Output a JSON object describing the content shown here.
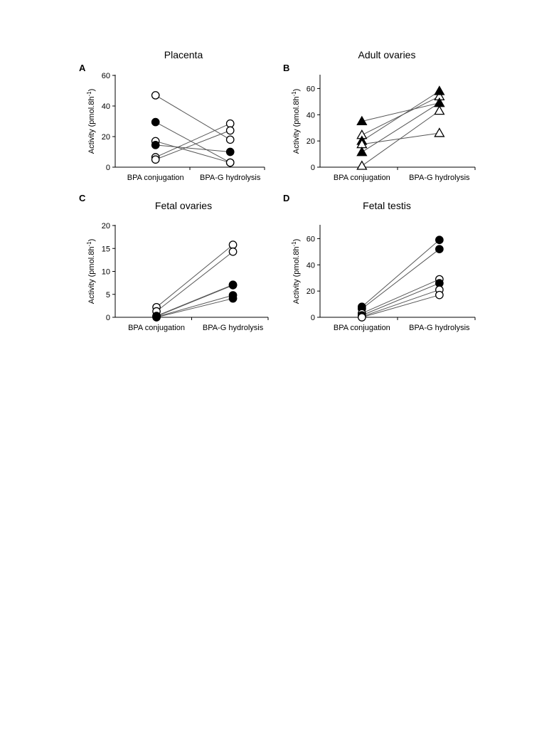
{
  "chart_data": [
    {
      "panel": "A",
      "title": "Placenta",
      "type": "scatter",
      "categories": [
        "BPA conjugation",
        "BPA-G hydrolysis"
      ],
      "ylabel": "Activity (pmol.8h-1)",
      "ylim": [
        0,
        60
      ],
      "yticks": [
        0,
        20,
        40,
        60
      ],
      "series": [
        {
          "marker": "open-circle",
          "values": [
            47,
            18
          ]
        },
        {
          "marker": "filled-circle",
          "values": [
            29.5,
            3
          ]
        },
        {
          "marker": "open-circle",
          "values": [
            17,
            3
          ]
        },
        {
          "marker": "filled-circle",
          "values": [
            14.5,
            10
          ]
        },
        {
          "marker": "open-circle",
          "values": [
            6.5,
            28.5
          ]
        },
        {
          "marker": "open-circle",
          "values": [
            5,
            24
          ]
        }
      ]
    },
    {
      "panel": "B",
      "title": "Adult  ovaries",
      "type": "scatter",
      "categories": [
        "BPA conjugation",
        "BPA-G hydrolysis"
      ],
      "ylabel": "Activity (pmol.8h-1)",
      "ylim": [
        0,
        70
      ],
      "yticks": [
        0,
        20,
        40,
        60
      ],
      "series": [
        {
          "marker": "filled-triangle",
          "values": [
            35,
            49
          ]
        },
        {
          "marker": "open-triangle",
          "values": [
            24.5,
            54
          ]
        },
        {
          "marker": "filled-triangle",
          "values": [
            20,
            58
          ]
        },
        {
          "marker": "open-triangle",
          "values": [
            17.5,
            26
          ]
        },
        {
          "marker": "filled-triangle",
          "values": [
            11.5,
            49
          ]
        },
        {
          "marker": "open-triangle",
          "values": [
            1,
            43
          ]
        }
      ]
    },
    {
      "panel": "C",
      "title": "Fetal ovaries",
      "type": "scatter",
      "categories": [
        "BPA conjugation",
        "BPA-G hydrolysis"
      ],
      "ylabel": "Activity (pmol.8h-1)",
      "ylim": [
        0,
        20
      ],
      "yticks": [
        0,
        5,
        10,
        15,
        20
      ],
      "series": [
        {
          "marker": "open-circle",
          "values": [
            2.2,
            15.8
          ]
        },
        {
          "marker": "open-circle",
          "values": [
            1.3,
            14.3
          ]
        },
        {
          "marker": "open-circle",
          "values": [
            0.3,
            7.1
          ]
        },
        {
          "marker": "filled-circle",
          "values": [
            0.2,
            7.0
          ]
        },
        {
          "marker": "filled-circle",
          "values": [
            0.1,
            4.8
          ]
        },
        {
          "marker": "filled-circle",
          "values": [
            0,
            4.1
          ]
        }
      ]
    },
    {
      "panel": "D",
      "title": "Fetal testis",
      "type": "scatter",
      "categories": [
        "BPA conjugation",
        "BPA-G hydrolysis"
      ],
      "ylabel": "Activity (pmol.8h-1)",
      "ylim": [
        0,
        70
      ],
      "yticks": [
        0,
        20,
        40,
        60
      ],
      "series": [
        {
          "marker": "filled-circle",
          "values": [
            8,
            59
          ]
        },
        {
          "marker": "filled-circle",
          "values": [
            6.5,
            52
          ]
        },
        {
          "marker": "open-circle",
          "values": [
            3,
            29
          ]
        },
        {
          "marker": "filled-circle",
          "values": [
            1.5,
            26
          ]
        },
        {
          "marker": "open-circle",
          "values": [
            0.5,
            21
          ]
        },
        {
          "marker": "open-circle",
          "values": [
            0,
            17
          ]
        }
      ]
    }
  ]
}
